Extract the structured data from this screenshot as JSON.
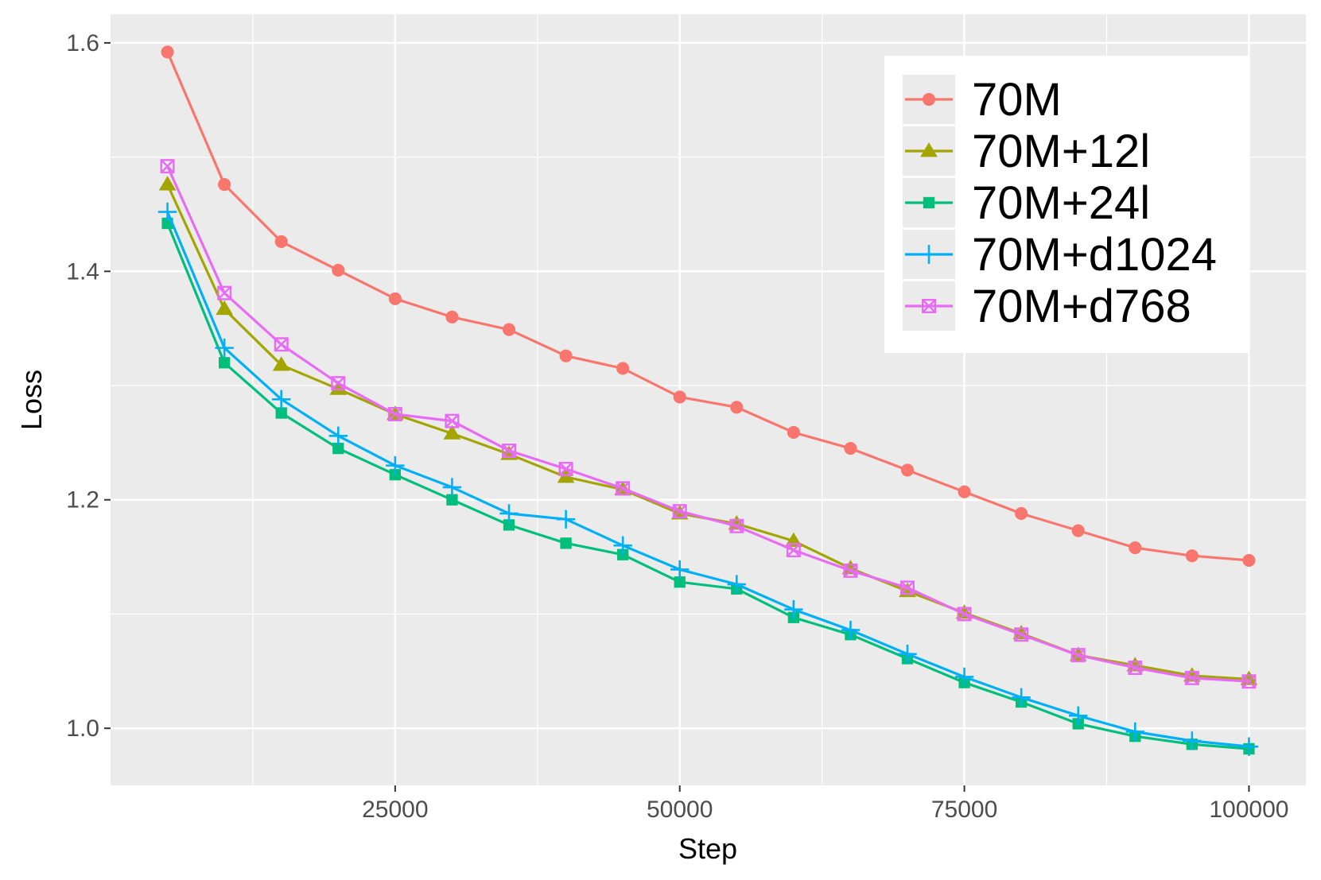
{
  "chart_data": {
    "type": "line",
    "title": "",
    "xlabel": "Step",
    "ylabel": "Loss",
    "xlim": [
      0,
      105000
    ],
    "ylim": [
      0.95,
      1.625
    ],
    "x_ticks": [
      25000,
      50000,
      75000,
      100000
    ],
    "x_tick_labels": [
      "25000",
      "50000",
      "75000",
      "100000"
    ],
    "y_ticks": [
      1.0,
      1.2,
      1.4,
      1.6
    ],
    "y_tick_labels": [
      "1.0",
      "1.2",
      "1.4",
      "1.6"
    ],
    "grid": true,
    "legend_position": "top-right",
    "x": [
      5000,
      10000,
      15000,
      20000,
      25000,
      30000,
      35000,
      40000,
      45000,
      50000,
      55000,
      60000,
      65000,
      70000,
      75000,
      80000,
      85000,
      90000,
      95000,
      100000
    ],
    "series": [
      {
        "name": "70M",
        "color": "#F8766D",
        "marker": "circle",
        "values": [
          1.592,
          1.476,
          1.426,
          1.401,
          1.376,
          1.36,
          1.349,
          1.326,
          1.315,
          1.29,
          1.281,
          1.259,
          1.245,
          1.226,
          1.207,
          1.188,
          1.173,
          1.158,
          1.151,
          1.147
        ]
      },
      {
        "name": "70M+12l",
        "color": "#A3A500",
        "marker": "triangle",
        "values": [
          1.476,
          1.367,
          1.318,
          1.297,
          1.275,
          1.258,
          1.24,
          1.22,
          1.209,
          1.188,
          1.179,
          1.164,
          1.14,
          1.12,
          1.101,
          1.083,
          1.064,
          1.055,
          1.046,
          1.043
        ]
      },
      {
        "name": "70M+24l",
        "color": "#00BF7D",
        "marker": "square",
        "values": [
          1.442,
          1.32,
          1.276,
          1.245,
          1.222,
          1.2,
          1.178,
          1.162,
          1.152,
          1.128,
          1.122,
          1.097,
          1.082,
          1.061,
          1.04,
          1.023,
          1.004,
          0.993,
          0.986,
          0.982
        ]
      },
      {
        "name": "70M+d1024",
        "color": "#00B0F6",
        "marker": "plus",
        "values": [
          1.452,
          1.333,
          1.288,
          1.256,
          1.23,
          1.211,
          1.188,
          1.183,
          1.16,
          1.139,
          1.126,
          1.104,
          1.086,
          1.065,
          1.045,
          1.027,
          1.011,
          0.997,
          0.989,
          0.984
        ]
      },
      {
        "name": "70M+d768",
        "color": "#E76BF3",
        "marker": "square-cross",
        "values": [
          1.492,
          1.381,
          1.336,
          1.302,
          1.275,
          1.269,
          1.243,
          1.227,
          1.21,
          1.19,
          1.177,
          1.156,
          1.138,
          1.123,
          1.1,
          1.082,
          1.064,
          1.053,
          1.044,
          1.041
        ]
      }
    ]
  }
}
